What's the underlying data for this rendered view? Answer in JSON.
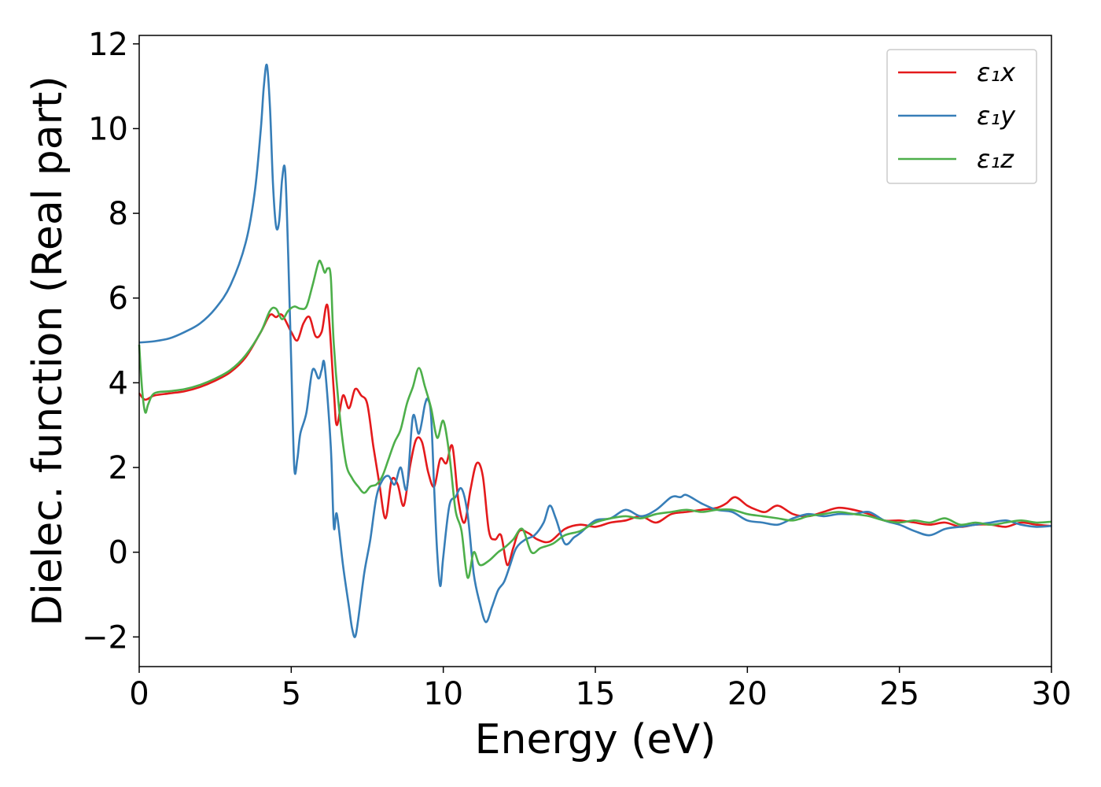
{
  "chart_data": {
    "type": "line",
    "title": "",
    "xlabel": "Energy (eV)",
    "ylabel": "Dielec. function (Real part)",
    "xlim": [
      0,
      30
    ],
    "ylim": [
      -2.7,
      12.2
    ],
    "xticks": [
      0,
      5,
      10,
      15,
      20,
      25,
      30
    ],
    "yticks": [
      -2,
      0,
      2,
      4,
      6,
      8,
      10,
      12
    ],
    "xtick_labels": [
      "0",
      "5",
      "10",
      "15",
      "20",
      "25",
      "30"
    ],
    "ytick_labels": [
      "−2",
      "0",
      "2",
      "4",
      "6",
      "8",
      "10",
      "12"
    ],
    "grid": false,
    "legend_position": "top-right",
    "series": [
      {
        "name": "ε₁x",
        "color": "#e41a1c",
        "x": [
          0,
          0.2,
          0.5,
          1,
          1.5,
          2,
          2.5,
          3,
          3.5,
          4,
          4.3,
          4.5,
          4.7,
          5.0,
          5.2,
          5.4,
          5.6,
          5.8,
          6.0,
          6.2,
          6.4,
          6.5,
          6.7,
          6.9,
          7.1,
          7.3,
          7.5,
          7.7,
          7.9,
          8.1,
          8.3,
          8.5,
          8.7,
          8.9,
          9.1,
          9.3,
          9.5,
          9.7,
          9.9,
          10.1,
          10.3,
          10.5,
          10.7,
          10.9,
          11.1,
          11.3,
          11.5,
          11.7,
          11.9,
          12.1,
          12.3,
          12.5,
          12.8,
          13.1,
          13.5,
          14,
          14.5,
          15,
          15.5,
          16,
          16.5,
          17,
          17.5,
          18,
          18.5,
          19,
          19.3,
          19.6,
          20,
          20.3,
          20.6,
          21,
          21.5,
          22,
          22.5,
          23,
          23.5,
          24,
          24.5,
          25,
          25.5,
          26,
          26.5,
          27,
          27.5,
          28,
          28.5,
          29,
          29.5,
          30
        ],
        "y": [
          3.75,
          3.6,
          3.7,
          3.75,
          3.8,
          3.9,
          4.05,
          4.25,
          4.6,
          5.2,
          5.6,
          5.55,
          5.6,
          5.2,
          5.0,
          5.4,
          5.55,
          5.1,
          5.2,
          5.8,
          3.8,
          3.0,
          3.7,
          3.4,
          3.85,
          3.7,
          3.5,
          2.5,
          1.6,
          0.8,
          1.7,
          1.6,
          1.1,
          2.0,
          2.65,
          2.6,
          1.9,
          1.55,
          2.2,
          2.1,
          2.5,
          1.2,
          0.7,
          1.5,
          2.1,
          1.8,
          0.5,
          0.3,
          0.4,
          -0.3,
          0.1,
          0.5,
          0.45,
          0.3,
          0.25,
          0.55,
          0.65,
          0.6,
          0.7,
          0.75,
          0.85,
          0.7,
          0.9,
          0.95,
          1.0,
          1.05,
          1.15,
          1.3,
          1.1,
          1.0,
          0.95,
          1.1,
          0.9,
          0.85,
          0.95,
          1.05,
          1.0,
          0.9,
          0.75,
          0.75,
          0.7,
          0.65,
          0.7,
          0.6,
          0.65,
          0.65,
          0.6,
          0.7,
          0.65,
          0.62
        ]
      },
      {
        "name": "ε₁y",
        "color": "#377eb8",
        "x": [
          0,
          0.5,
          1,
          1.5,
          2,
          2.5,
          3,
          3.5,
          3.8,
          4.0,
          4.1,
          4.2,
          4.3,
          4.4,
          4.5,
          4.6,
          4.7,
          4.8,
          4.9,
          5.0,
          5.1,
          5.2,
          5.3,
          5.5,
          5.7,
          5.9,
          6.0,
          6.1,
          6.3,
          6.4,
          6.5,
          6.7,
          6.9,
          7.0,
          7.1,
          7.2,
          7.4,
          7.6,
          7.8,
          8.0,
          8.2,
          8.4,
          8.6,
          8.8,
          9.0,
          9.2,
          9.4,
          9.5,
          9.6,
          9.7,
          9.8,
          9.9,
          10.0,
          10.2,
          10.4,
          10.6,
          10.8,
          11.0,
          11.2,
          11.4,
          11.6,
          11.8,
          12.0,
          12.2,
          12.4,
          12.7,
          13.0,
          13.3,
          13.5,
          13.7,
          14.0,
          14.3,
          14.5,
          15.0,
          15.5,
          16.0,
          16.5,
          17.0,
          17.5,
          17.8,
          18.0,
          18.5,
          19,
          19.5,
          20,
          20.5,
          21,
          21.5,
          22,
          22.5,
          23,
          23.5,
          24,
          24.5,
          25,
          25.5,
          26,
          26.5,
          27,
          27.5,
          28,
          28.5,
          29,
          29.5,
          30
        ],
        "y": [
          4.95,
          4.98,
          5.05,
          5.2,
          5.4,
          5.75,
          6.3,
          7.3,
          8.5,
          10.0,
          11.0,
          11.5,
          10.5,
          8.7,
          7.7,
          7.8,
          8.8,
          9.0,
          7.0,
          4.5,
          2.0,
          2.2,
          2.8,
          3.3,
          4.3,
          4.1,
          4.3,
          4.4,
          2.5,
          0.6,
          0.9,
          -0.3,
          -1.3,
          -1.8,
          -2.0,
          -1.6,
          -0.5,
          0.3,
          1.3,
          1.7,
          1.8,
          1.6,
          2.0,
          1.5,
          3.2,
          2.8,
          3.5,
          3.6,
          3.2,
          1.5,
          0.0,
          -0.8,
          -0.1,
          1.1,
          1.3,
          1.5,
          0.9,
          -0.5,
          -1.2,
          -1.65,
          -1.3,
          -0.9,
          -0.7,
          -0.3,
          0.1,
          0.3,
          0.4,
          0.7,
          1.1,
          0.8,
          0.2,
          0.35,
          0.45,
          0.75,
          0.8,
          1.0,
          0.85,
          1.0,
          1.3,
          1.3,
          1.35,
          1.15,
          1.0,
          0.95,
          0.75,
          0.7,
          0.65,
          0.8,
          0.9,
          0.85,
          0.9,
          0.9,
          0.95,
          0.75,
          0.65,
          0.5,
          0.4,
          0.55,
          0.6,
          0.65,
          0.7,
          0.75,
          0.65,
          0.6,
          0.62
        ]
      },
      {
        "name": "ε₁z",
        "color": "#4daf4a",
        "x": [
          0,
          0.1,
          0.2,
          0.3,
          0.5,
          1,
          1.5,
          2,
          2.5,
          3,
          3.5,
          4,
          4.3,
          4.5,
          4.7,
          4.9,
          5.1,
          5.3,
          5.5,
          5.7,
          5.9,
          6.0,
          6.1,
          6.2,
          6.3,
          6.4,
          6.6,
          6.8,
          7.0,
          7.2,
          7.4,
          7.6,
          7.8,
          8.0,
          8.2,
          8.4,
          8.6,
          8.8,
          9.0,
          9.2,
          9.4,
          9.6,
          9.8,
          10.0,
          10.2,
          10.4,
          10.6,
          10.8,
          11.0,
          11.2,
          11.5,
          11.8,
          12.0,
          12.3,
          12.6,
          12.9,
          13.2,
          13.6,
          14.0,
          14.5,
          15.0,
          15.5,
          16.0,
          16.5,
          17.0,
          17.5,
          18.0,
          18.5,
          19,
          19.5,
          20,
          20.5,
          21,
          21.5,
          22,
          22.5,
          23,
          23.5,
          24,
          24.5,
          25,
          25.5,
          26,
          26.5,
          27,
          27.5,
          28,
          28.5,
          29,
          29.5,
          30
        ],
        "y": [
          4.9,
          3.8,
          3.3,
          3.5,
          3.75,
          3.8,
          3.85,
          3.95,
          4.1,
          4.3,
          4.65,
          5.2,
          5.7,
          5.75,
          5.5,
          5.7,
          5.8,
          5.75,
          5.8,
          6.3,
          6.85,
          6.8,
          6.6,
          6.7,
          6.5,
          4.9,
          3.2,
          2.1,
          1.75,
          1.55,
          1.4,
          1.55,
          1.6,
          1.8,
          2.2,
          2.6,
          2.9,
          3.5,
          3.9,
          4.35,
          3.9,
          3.4,
          2.7,
          3.1,
          2.3,
          1.0,
          0.5,
          -0.6,
          0.0,
          -0.3,
          -0.2,
          0.0,
          0.1,
          0.3,
          0.55,
          0.0,
          0.1,
          0.2,
          0.4,
          0.5,
          0.7,
          0.8,
          0.85,
          0.8,
          0.9,
          0.95,
          1.0,
          0.95,
          1.0,
          1.0,
          0.9,
          0.85,
          0.8,
          0.75,
          0.85,
          0.9,
          0.95,
          0.9,
          0.85,
          0.75,
          0.7,
          0.75,
          0.7,
          0.8,
          0.65,
          0.7,
          0.65,
          0.7,
          0.75,
          0.7,
          0.72
        ]
      }
    ]
  }
}
